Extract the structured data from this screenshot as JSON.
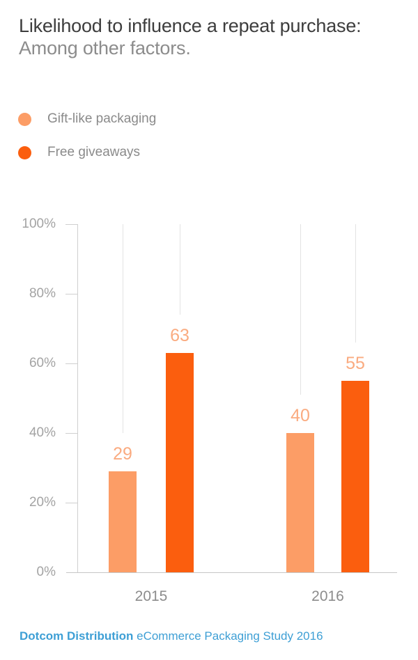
{
  "header": {
    "title": "Likelihood to influence a repeat purchase:",
    "subtitle": "Among other factors."
  },
  "chart_data": {
    "type": "bar",
    "title": "Likelihood to influence a repeat purchase:",
    "subtitle": "Among other factors.",
    "categories": [
      "2015",
      "2016"
    ],
    "series": [
      {
        "name": "Gift-like packaging",
        "color": "#FC9D66",
        "values": [
          29,
          40
        ]
      },
      {
        "name": "Free giveaways",
        "color": "#FB5E0E",
        "values": [
          63,
          55
        ]
      }
    ],
    "value_labels": [
      [
        29,
        63
      ],
      [
        40,
        55
      ]
    ],
    "value_label_color": "#FAAB80",
    "ylim": [
      0,
      100
    ],
    "ytick_labels": [
      "100%",
      "80%",
      "60%",
      "40%",
      "20%",
      "0%"
    ],
    "grid": "vertical-stub-per-bar",
    "legend_position": "top-left",
    "axis_color": "#cfcfcf",
    "gridline_color": "#e3e3e3",
    "ytick_label_color": "#a3a3a3",
    "category_label_color": "#8c8c8c"
  },
  "footer": {
    "brand": "Dotcom Distribution",
    "rest": " eCommerce Packaging Study 2016",
    "color": "#3E9FD5"
  }
}
